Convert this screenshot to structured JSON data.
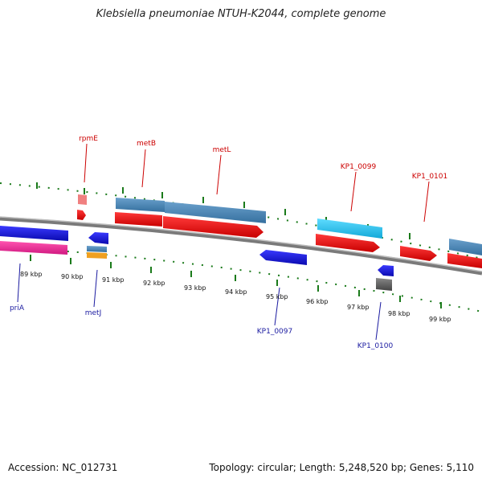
{
  "title": "Klebsiella pneumoniae NTUH-K2044, complete genome",
  "footer": {
    "accession": "Accession: NC_012731",
    "topology": "Topology: circular; Length: 5,248,520 bp; Genes: 5,110"
  },
  "ticks": [
    "89 kbp",
    "90 kbp",
    "91 kbp",
    "92 kbp",
    "93 kbp",
    "94 kbp",
    "95 kbp",
    "96 kbp",
    "97 kbp",
    "98 kbp",
    "99 kbp"
  ],
  "genes_top": [
    "rpmE",
    "metB",
    "metL",
    "KP1_0099",
    "KP1_0101"
  ],
  "genes_bottom": [
    "priA",
    "metJ",
    "KP1_0097",
    "KP1_0100"
  ],
  "colors": {
    "forward_cds": "#ee1111",
    "gene_steel": "#4a86b8",
    "gene_cyan": "#22c4ee",
    "reverse_cds": "#1515dd",
    "pink": "#ee3399",
    "orange": "#f0a020",
    "gray": "#666666",
    "tick_green": "#1a7a1a"
  }
}
